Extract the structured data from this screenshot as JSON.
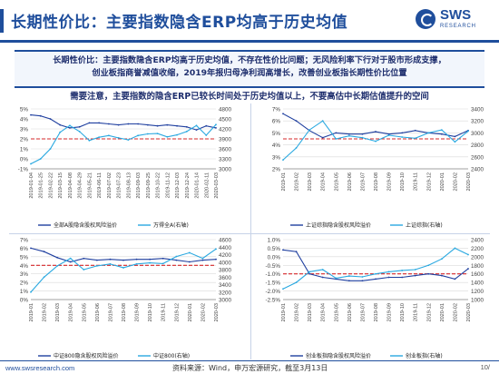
{
  "header": {
    "title": "长期性价比：主要指数隐含ERP均高于历史均值",
    "logo_text": "SWS",
    "logo_sub": "RESEARCH"
  },
  "summary": {
    "lines": [
      "长期性价比：主要指数隐含ERP均高于历史均值，不存在性价比问题；无风险利率下行对于股市形成支撑，",
      "创业板指商誉减值收缩，2019年报归母净利润高增长，改善创业板指长期性价比位置"
    ]
  },
  "note": "需要注意，主要指数的隐含ERP已较长时间处于历史均值以上，不要高估中长期估值提升的空间",
  "colors": {
    "erp": "#1f3f9f",
    "index": "#29a8e0",
    "mean": "#d62728",
    "grid": "#d9d9d9",
    "axis_text": "#444444"
  },
  "chart_data": [
    {
      "type": "line",
      "id": "all-a",
      "x": [
        "2019-01-04",
        "2019-01-25",
        "2019-02-22",
        "2019-03-15",
        "2019-04-08",
        "2019-04-29",
        "2019-05-21",
        "2019-06-11",
        "2019-07-02",
        "2019-07-23",
        "2019-08-13",
        "2019-09-03",
        "2019-09-25",
        "2019-10-22",
        "2019-11-12",
        "2019-12-03",
        "2019-12-24",
        "2020-01-14",
        "2020-02-11",
        "2020-03-03"
      ],
      "series": [
        {
          "name": "全部A股隐含股权风险溢价",
          "axis": "left",
          "values": [
            4.4,
            4.3,
            4.0,
            3.4,
            3.1,
            3.2,
            3.6,
            3.6,
            3.5,
            3.4,
            3.5,
            3.5,
            3.4,
            3.3,
            3.4,
            3.3,
            3.2,
            2.9,
            3.3,
            3.1
          ]
        },
        {
          "name": "万得全A(右轴)",
          "axis": "right",
          "values": [
            3150,
            3300,
            3600,
            4100,
            4300,
            4120,
            3850,
            3950,
            4000,
            3930,
            3870,
            4000,
            4050,
            4060,
            3960,
            4020,
            4120,
            4300,
            4010,
            4330
          ]
        }
      ],
      "mean": 2.0,
      "ylim_left": [
        -1,
        5
      ],
      "yticks_left": [
        "-1%",
        "0%",
        "1%",
        "2%",
        "3%",
        "4%",
        "5%"
      ],
      "ylim_right": [
        3000,
        4800
      ],
      "yticks_right": [
        "3000",
        "3300",
        "3600",
        "3900",
        "4200",
        "4500",
        "4800"
      ]
    },
    {
      "type": "line",
      "id": "sh-composite",
      "x": [
        "2019-01",
        "2019-02",
        "2019-03",
        "2019-04",
        "2019-05",
        "2019-06",
        "2019-07",
        "2019-08",
        "2019-09",
        "2019-10",
        "2019-11",
        "2019-12",
        "2020-01",
        "2020-02",
        "2020-03"
      ],
      "series": [
        {
          "name": "上证综指隐含股权风险溢价",
          "axis": "left",
          "values": [
            6.6,
            6.0,
            5.2,
            4.6,
            5.0,
            4.9,
            4.9,
            5.1,
            4.9,
            5.0,
            5.2,
            5.0,
            4.9,
            4.7,
            5.2
          ]
        },
        {
          "name": "上证综指(右轴)",
          "axis": "right",
          "values": [
            2550,
            2750,
            3050,
            3200,
            2900,
            2950,
            2920,
            2860,
            2960,
            2930,
            2910,
            3000,
            3050,
            2850,
            3030
          ]
        }
      ],
      "mean": 4.5,
      "ylim_left": [
        2,
        7
      ],
      "yticks_left": [
        "2%",
        "3%",
        "4%",
        "5%",
        "6%",
        "7%"
      ],
      "ylim_right": [
        2400,
        3400
      ],
      "yticks_right": [
        "2400",
        "2600",
        "2800",
        "3000",
        "3200",
        "3400"
      ]
    },
    {
      "type": "line",
      "id": "csi-800",
      "x": [
        "2019-01",
        "2019-02",
        "2019-03",
        "2019-04",
        "2019-05",
        "2019-06",
        "2019-07",
        "2019-08",
        "2019-09",
        "2019-10",
        "2019-11",
        "2019-12",
        "2020-01",
        "2020-02",
        "2020-03"
      ],
      "series": [
        {
          "name": "中证800隐含股权风险溢价",
          "axis": "left",
          "values": [
            6.0,
            5.6,
            4.9,
            4.4,
            4.8,
            4.6,
            4.7,
            4.6,
            4.7,
            4.7,
            4.8,
            4.6,
            4.4,
            4.6,
            4.7
          ]
        },
        {
          "name": "中证800(右轴)",
          "axis": "right",
          "values": [
            3200,
            3600,
            3900,
            4100,
            3800,
            3900,
            3950,
            3850,
            3950,
            3980,
            3960,
            4150,
            4250,
            4100,
            4350
          ]
        }
      ],
      "mean": 4.0,
      "ylim_left": [
        0,
        7
      ],
      "yticks_left": [
        "0%",
        "1%",
        "2%",
        "3%",
        "4%",
        "5%",
        "6%",
        "7%"
      ],
      "ylim_right": [
        3000,
        4600
      ],
      "yticks_right": [
        "3000",
        "3200",
        "3400",
        "3600",
        "3800",
        "4000",
        "4200",
        "4400",
        "4600"
      ]
    },
    {
      "type": "line",
      "id": "chinext",
      "x": [
        "2019-01",
        "2019-02",
        "2019-03",
        "2019-04",
        "2019-05",
        "2019-06",
        "2019-07",
        "2019-08",
        "2019-09",
        "2019-10",
        "2019-11",
        "2019-12",
        "2020-01",
        "2020-02",
        "2020-03"
      ],
      "series": [
        {
          "name": "创业板指隐含股权风险溢价",
          "axis": "left",
          "values": [
            0.4,
            0.3,
            -1.0,
            -1.2,
            -1.3,
            -1.4,
            -1.4,
            -1.3,
            -1.2,
            -1.2,
            -1.1,
            -1.0,
            -1.1,
            -1.3,
            -0.7
          ]
        },
        {
          "name": "创业板指(右轴)",
          "axis": "right",
          "values": [
            1250,
            1400,
            1650,
            1700,
            1500,
            1550,
            1530,
            1600,
            1650,
            1680,
            1700,
            1800,
            1950,
            2200,
            2050
          ]
        }
      ],
      "mean": -1.0,
      "ylim_left": [
        -2.5,
        1.0
      ],
      "yticks_left": [
        "-2.5%",
        "-2.0%",
        "-1.5%",
        "-1.0%",
        "-0.5%",
        "0.0%",
        "0.5%",
        "1.0%"
      ],
      "ylim_right": [
        1000,
        2400
      ],
      "yticks_right": [
        "1000",
        "1200",
        "1400",
        "1600",
        "1800",
        "2000",
        "2200",
        "2400"
      ]
    }
  ],
  "footer": {
    "url": "www.swsresearch.com",
    "source": "资料来源：Wind，申万宏源研究，截至3月13日",
    "page": "10/"
  }
}
